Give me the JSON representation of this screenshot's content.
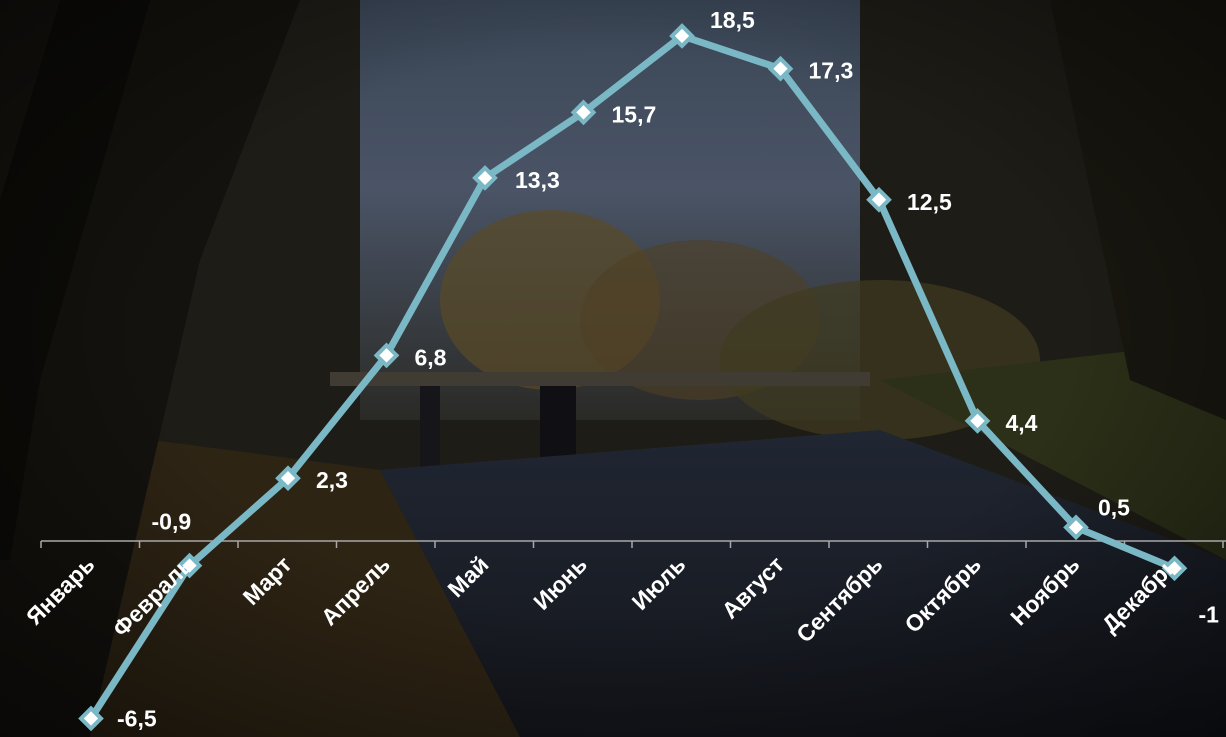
{
  "chart_data": {
    "type": "line",
    "title": "",
    "xlabel": "",
    "ylabel": "",
    "categories": [
      "Январь",
      "Февраль",
      "Март",
      "Апрель",
      "Май",
      "Июнь",
      "Июль",
      "Август",
      "Сентябрь",
      "Октябрь",
      "Ноябрь",
      "Декабрь"
    ],
    "series": [
      {
        "values": [
          -6.5,
          -0.9,
          2.3,
          6.8,
          13.3,
          15.7,
          18.5,
          17.3,
          12.5,
          4.4,
          0.5,
          -1
        ],
        "labels": [
          "-6,5",
          "-0,9",
          "2,3",
          "6,8",
          "13,3",
          "15,7",
          "18,5",
          "17,3",
          "12,5",
          "4,4",
          "0,5",
          "-1"
        ]
      }
    ],
    "legend": "none",
    "grid": false,
    "colors": {
      "line": "#7ab8c6",
      "marker_fill": "#ffffff",
      "axis": "#a8a8a8",
      "text": "#ffffff"
    }
  }
}
